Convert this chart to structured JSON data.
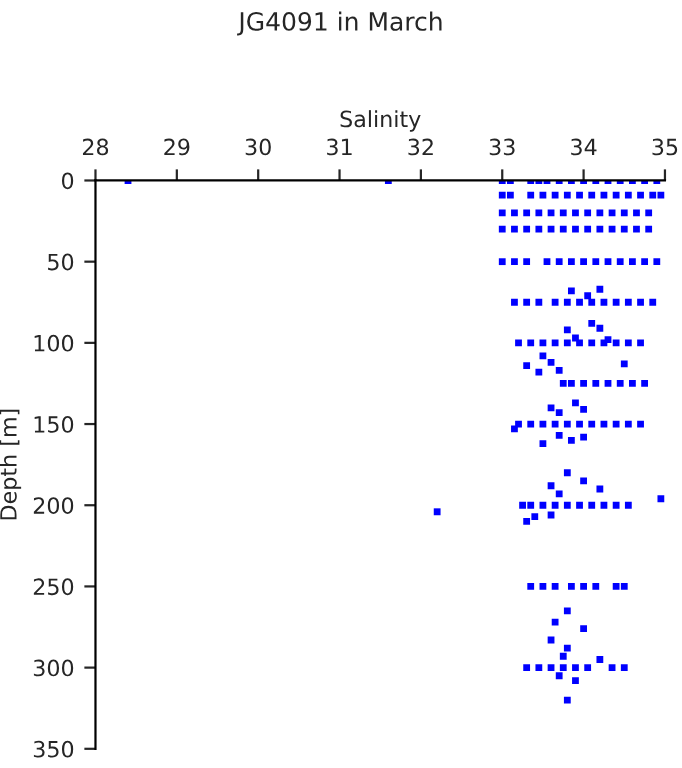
{
  "chart_data": {
    "type": "scatter",
    "title": "JG4091 in March",
    "xlabel": "Salinity",
    "ylabel": "Depth [m]",
    "xlim": [
      28,
      35
    ],
    "xticks": [
      28,
      29,
      30,
      31,
      32,
      33,
      34,
      35
    ],
    "ylim": [
      350,
      0
    ],
    "yticks": [
      0,
      50,
      100,
      150,
      200,
      250,
      300,
      350
    ],
    "grid": false,
    "marker": "square",
    "series": [
      {
        "color": "#0000ff",
        "x": [
          28.4,
          31.6,
          33.0,
          33.1,
          33.35,
          33.45,
          33.55,
          33.7,
          33.85,
          34.0,
          34.15,
          34.3,
          34.45,
          34.6,
          34.75,
          34.9,
          33.0,
          33.1,
          33.35,
          33.5,
          33.65,
          33.8,
          33.95,
          34.1,
          34.25,
          34.4,
          34.55,
          34.7,
          34.85,
          34.95,
          33.0,
          33.15,
          33.3,
          33.45,
          33.6,
          33.75,
          33.9,
          34.05,
          34.2,
          34.35,
          34.5,
          34.65,
          34.8,
          33.0,
          33.15,
          33.3,
          33.45,
          33.6,
          33.75,
          33.9,
          34.05,
          34.2,
          34.35,
          34.5,
          34.65,
          34.8,
          33.0,
          33.15,
          33.3,
          33.55,
          33.7,
          33.85,
          34.0,
          34.15,
          34.3,
          34.45,
          34.6,
          34.75,
          34.9,
          33.15,
          33.3,
          33.45,
          33.65,
          33.8,
          33.95,
          34.1,
          34.25,
          34.4,
          34.55,
          34.7,
          34.85,
          33.85,
          34.2,
          34.05,
          33.2,
          33.35,
          33.5,
          33.65,
          33.8,
          33.95,
          34.1,
          34.25,
          34.4,
          34.55,
          34.7,
          33.8,
          34.1,
          34.2,
          33.9,
          34.3,
          33.5,
          33.6,
          33.3,
          33.45,
          33.7,
          34.5,
          33.75,
          33.85,
          34.0,
          34.15,
          34.3,
          34.45,
          34.6,
          34.75,
          33.2,
          33.35,
          33.5,
          33.65,
          33.8,
          33.95,
          34.1,
          34.25,
          34.4,
          34.55,
          34.7,
          33.6,
          33.7,
          33.9,
          34.0,
          33.7,
          33.85,
          33.5,
          34.0,
          33.15,
          33.25,
          33.35,
          33.5,
          33.65,
          33.8,
          33.95,
          34.1,
          34.25,
          34.4,
          34.55,
          32.2,
          34.95,
          33.8,
          34.0,
          33.6,
          33.7,
          34.2,
          33.4,
          33.6,
          33.3,
          33.35,
          33.5,
          33.65,
          33.85,
          34.0,
          34.15,
          34.4,
          34.5,
          33.3,
          33.45,
          33.6,
          33.75,
          33.9,
          34.05,
          34.35,
          34.5,
          33.8,
          33.65,
          34.0,
          33.6,
          33.8,
          33.75,
          34.2,
          33.7,
          33.9,
          33.8
        ],
        "values": [
          0,
          0,
          0,
          0,
          0,
          0,
          0,
          0,
          0,
          0,
          0,
          0,
          0,
          0,
          0,
          0,
          9,
          9,
          9,
          9,
          9,
          9,
          9,
          9,
          9,
          9,
          9,
          9,
          9,
          9,
          20,
          20,
          20,
          20,
          20,
          20,
          20,
          20,
          20,
          20,
          20,
          20,
          20,
          30,
          30,
          30,
          30,
          30,
          30,
          30,
          30,
          30,
          30,
          30,
          30,
          30,
          50,
          50,
          50,
          50,
          50,
          50,
          50,
          50,
          50,
          50,
          50,
          50,
          50,
          75,
          75,
          75,
          75,
          75,
          75,
          75,
          75,
          75,
          75,
          75,
          75,
          68,
          67,
          71,
          100,
          100,
          100,
          100,
          100,
          100,
          100,
          100,
          100,
          100,
          100,
          92,
          88,
          91,
          97,
          98,
          108,
          112,
          114,
          118,
          117,
          113,
          125,
          125,
          125,
          125,
          125,
          125,
          125,
          125,
          150,
          150,
          150,
          150,
          150,
          150,
          150,
          150,
          150,
          150,
          150,
          140,
          143,
          137,
          141,
          157,
          160,
          162,
          158,
          153,
          200,
          200,
          200,
          200,
          200,
          200,
          200,
          200,
          200,
          200,
          204,
          196,
          180,
          185,
          188,
          193,
          190,
          207,
          206,
          210,
          250,
          250,
          250,
          250,
          250,
          250,
          250,
          250,
          300,
          300,
          300,
          300,
          300,
          300,
          300,
          300,
          265,
          272,
          276,
          283,
          288,
          293,
          295,
          305,
          308,
          320
        ]
      }
    ]
  }
}
